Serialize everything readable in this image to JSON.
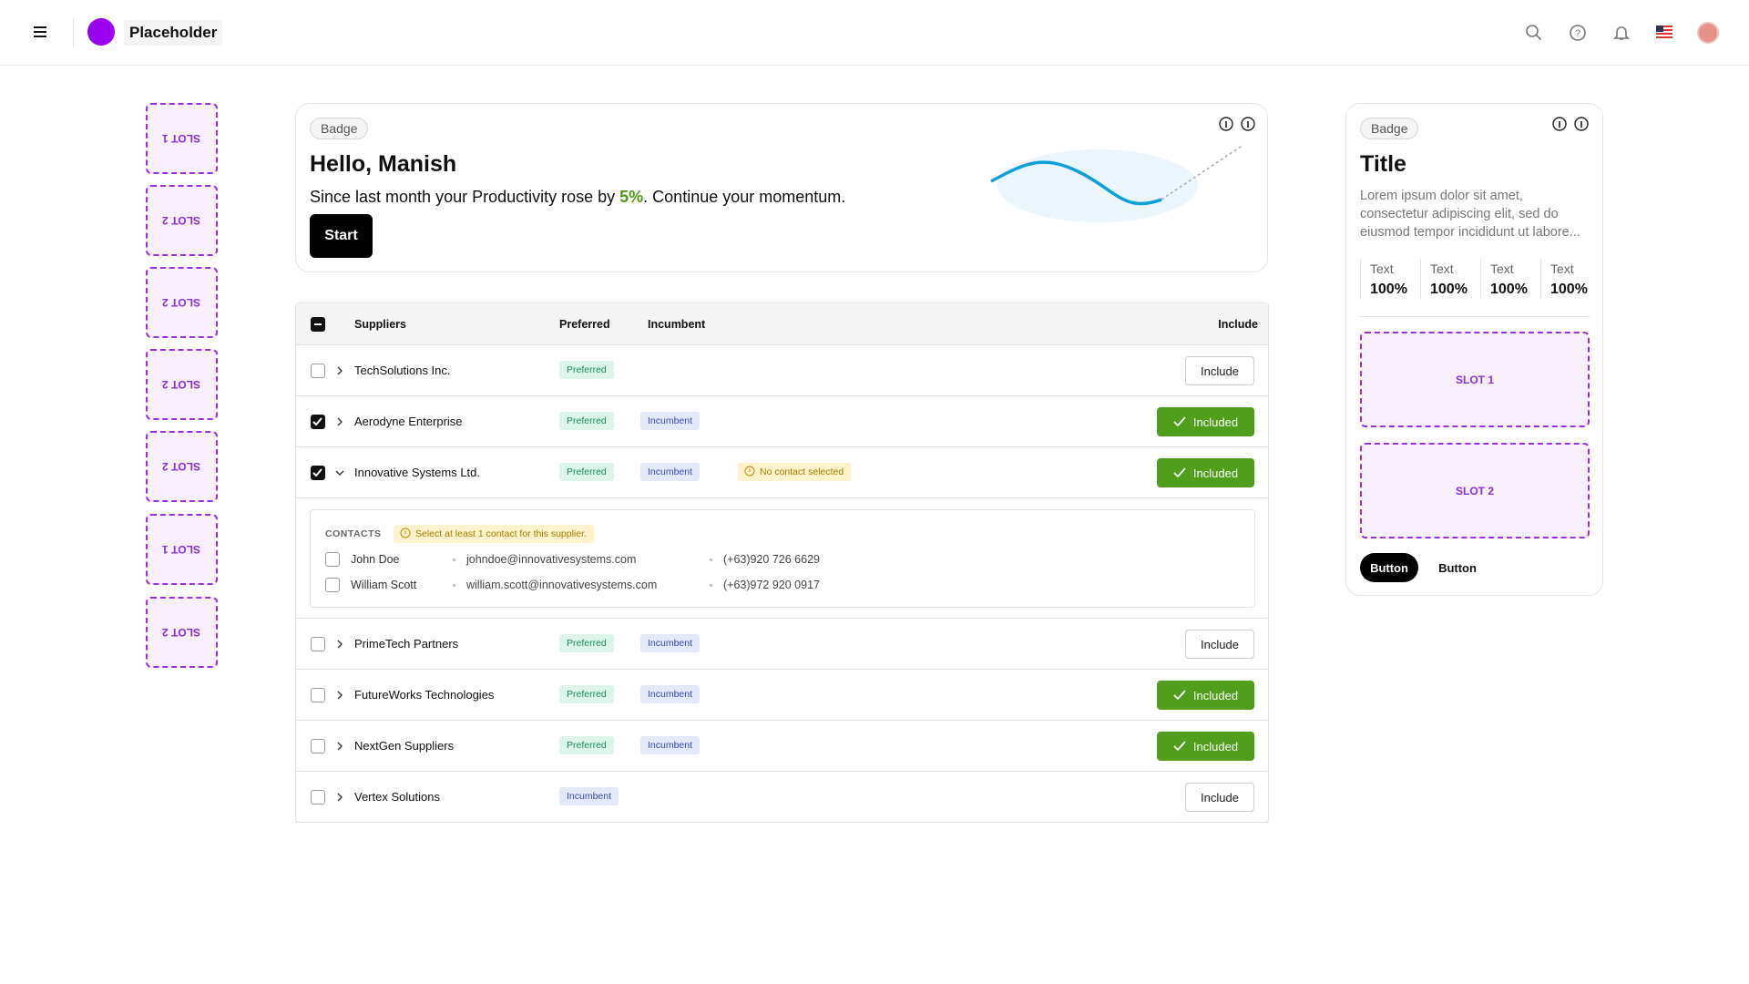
{
  "header": {
    "title": "Placeholder"
  },
  "left_slots": [
    "SLOT 1",
    "SLOT 2",
    "SLOT 2",
    "SLOT 2",
    "SLOT 2",
    "SLOT 1",
    "SLOT 2"
  ],
  "hero": {
    "badge": "Badge",
    "greeting": "Hello, Manish",
    "message_before": "Since last month your Productivity rose by ",
    "highlight": "5%",
    "message_after": ". Continue your momentum.",
    "button": "Start"
  },
  "table": {
    "columns": [
      "Suppliers",
      "Preferred",
      "Incumbent",
      "Include"
    ],
    "rows": [
      {
        "name": "TechSolutions Inc.",
        "tags": [
          "Preferred"
        ],
        "action": "Include",
        "checked": false,
        "included": false,
        "expanded": false
      },
      {
        "name": "Aerodyne Enterprise",
        "tags": [
          "Preferred",
          "Incumbent"
        ],
        "action": "Included",
        "checked": true,
        "included": true,
        "expanded": false
      },
      {
        "name": "Innovative Systems Ltd.",
        "tags": [
          "Preferred",
          "Incumbent"
        ],
        "warning": "No contact selected",
        "action": "Included",
        "checked": true,
        "included": true,
        "expanded": true
      },
      {
        "name": "PrimeTech Partners",
        "tags": [
          "Preferred",
          "Incumbent"
        ],
        "action": "Include",
        "checked": false,
        "included": false,
        "expanded": false
      },
      {
        "name": "FutureWorks Technologies",
        "tags": [
          "Preferred",
          "Incumbent"
        ],
        "action": "Included",
        "checked": false,
        "included": true,
        "expanded": false
      },
      {
        "name": "NextGen Suppliers",
        "tags": [
          "Preferred",
          "Incumbent"
        ],
        "action": "Included",
        "checked": false,
        "included": true,
        "expanded": false
      },
      {
        "name": "Vertex Solutions",
        "tags": [
          "Incumbent"
        ],
        "action": "Include",
        "checked": false,
        "included": false,
        "expanded": false
      }
    ],
    "contacts": {
      "label": "CONTACTS",
      "warning": "Select at least 1 contact for this supplier.",
      "people": [
        {
          "name": "John Doe",
          "email": "johndoe@innovativesystems.com",
          "phone": "(+63)920 726 6629"
        },
        {
          "name": "William Scott",
          "email": "william.scott@innovativesystems.com",
          "phone": "(+63)972 920 0917"
        }
      ]
    }
  },
  "side_card": {
    "badge": "Badge",
    "title": "Title",
    "body": "Lorem ipsum dolor sit amet, consectetur adipiscing elit, sed do eiusmod tempor incididunt ut labore...",
    "stats": [
      {
        "label": "Text",
        "value": "100%"
      },
      {
        "label": "Text",
        "value": "100%"
      },
      {
        "label": "Text",
        "value": "100%"
      },
      {
        "label": "Text",
        "value": "100%"
      }
    ],
    "slots": [
      "SLOT 1",
      "SLOT 2"
    ],
    "buttons": [
      "Button",
      "Button"
    ]
  }
}
